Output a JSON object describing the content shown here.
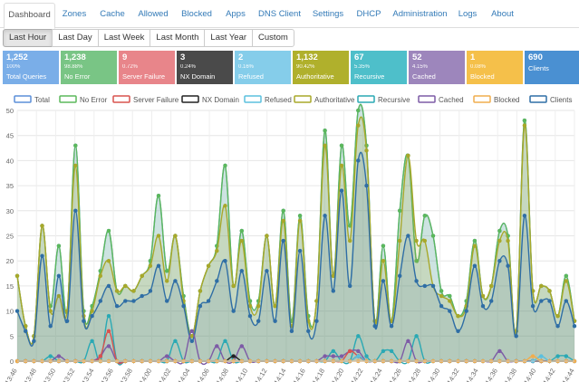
{
  "nav": {
    "tabs": [
      "Dashboard",
      "Zones",
      "Cache",
      "Allowed",
      "Blocked",
      "Apps",
      "DNS Client",
      "Settings",
      "DHCP",
      "Administration",
      "Logs",
      "About"
    ],
    "active": "Dashboard"
  },
  "range": {
    "buttons": [
      "Last Hour",
      "Last Day",
      "Last Week",
      "Last Month",
      "Last Year",
      "Custom"
    ],
    "active": "Last Hour"
  },
  "cards": [
    {
      "value": "1,252",
      "pct": "100%",
      "label": "Total Queries",
      "color": "#7aaee8"
    },
    {
      "value": "1,238",
      "pct": "98.88%",
      "label": "No Error",
      "color": "#79c585"
    },
    {
      "value": "9",
      "pct": "0.72%",
      "label": "Server Failure",
      "color": "#e8858a"
    },
    {
      "value": "3",
      "pct": "0.24%",
      "label": "NX Domain",
      "color": "#4a4a4a"
    },
    {
      "value": "2",
      "pct": "0.16%",
      "label": "Refused",
      "color": "#85cdea"
    },
    {
      "value": "1,132",
      "pct": "90.42%",
      "label": "Authoritative",
      "color": "#b0b02c"
    },
    {
      "value": "67",
      "pct": "5.35%",
      "label": "Recursive",
      "color": "#4ebfca"
    },
    {
      "value": "52",
      "pct": "4.15%",
      "label": "Cached",
      "color": "#9d86bc"
    },
    {
      "value": "1",
      "pct": "0.08%",
      "label": "Blocked",
      "color": "#f5c04a"
    },
    {
      "value": "690",
      "pct": "",
      "label": "Clients",
      "color": "#4a90d2"
    }
  ],
  "chart_data": {
    "type": "area",
    "legend": [
      "Total",
      "No Error",
      "Server Failure",
      "NX Domain",
      "Refused",
      "Authoritative",
      "Recursive",
      "Cached",
      "Blocked",
      "Clients"
    ],
    "colors": [
      "#5b8fd9",
      "#5cb85c",
      "#d9534f",
      "#222222",
      "#5bc0de",
      "#a8a82a",
      "#2aa9b4",
      "#7d5ba6",
      "#f0ad4e",
      "#2f6ea5"
    ],
    "xticks": [
      "13:46",
      "13:48",
      "13:50",
      "13:52",
      "13:54",
      "13:56",
      "13:58",
      "14:00",
      "14:02",
      "14:04",
      "14:06",
      "14:08",
      "14:10",
      "14:12",
      "14:14",
      "14:16",
      "14:18",
      "14:20",
      "14:22",
      "14:24",
      "14:26",
      "14:28",
      "14:30",
      "14:32",
      "14:34",
      "14:36",
      "14:38",
      "14:40",
      "14:42",
      "14:44"
    ],
    "ylim": [
      0,
      50
    ],
    "yticks": [
      0,
      5,
      10,
      15,
      20,
      25,
      30,
      35,
      40,
      45,
      50
    ],
    "series": {
      "Total": [
        17,
        7,
        5,
        27,
        11,
        23,
        10,
        43,
        10,
        11,
        18,
        26,
        14,
        15,
        14,
        17,
        20,
        33,
        18,
        25,
        13,
        5,
        14,
        19,
        23,
        39,
        15,
        26,
        12,
        12,
        25,
        11,
        30,
        8,
        29,
        9,
        12,
        46,
        17,
        43,
        27,
        50,
        43,
        8,
        23,
        8,
        30,
        41,
        20,
        29,
        25,
        14,
        13,
        9,
        12,
        24,
        13,
        15,
        26,
        25,
        6,
        48,
        14,
        15,
        14,
        9,
        17,
        8
      ],
      "No Error": [
        17,
        7,
        5,
        27,
        11,
        23,
        10,
        43,
        10,
        11,
        18,
        26,
        14,
        15,
        14,
        17,
        20,
        33,
        18,
        25,
        13,
        5,
        14,
        19,
        23,
        39,
        15,
        26,
        12,
        12,
        25,
        11,
        30,
        8,
        29,
        9,
        12,
        46,
        17,
        43,
        27,
        50,
        43,
        8,
        23,
        8,
        30,
        41,
        20,
        29,
        25,
        14,
        13,
        9,
        12,
        24,
        13,
        15,
        26,
        25,
        6,
        48,
        14,
        15,
        14,
        9,
        17,
        8
      ],
      "Server Failure": [
        0,
        0,
        0,
        0,
        0,
        0,
        0,
        0,
        0,
        0,
        1,
        6,
        0,
        0,
        0,
        0,
        0,
        0,
        0,
        0,
        0,
        0,
        0,
        0,
        0,
        0,
        0,
        0,
        0,
        0,
        0,
        0,
        0,
        0,
        0,
        0,
        0,
        0,
        0,
        0,
        2,
        1,
        0,
        0,
        0,
        0,
        0,
        0,
        0,
        0,
        0,
        0,
        0,
        0,
        0,
        0,
        0,
        0,
        0,
        0,
        0,
        0,
        0,
        0,
        0,
        0,
        0,
        0
      ],
      "NX Domain": [
        0,
        0,
        0,
        0,
        0,
        0,
        0,
        0,
        0,
        0,
        0,
        0,
        0,
        0,
        0,
        0,
        0,
        0,
        0,
        0,
        0,
        0,
        0,
        0,
        0,
        0,
        1,
        0,
        0,
        0,
        0,
        0,
        0,
        0,
        0,
        0,
        0,
        0,
        0,
        0,
        0,
        1,
        0,
        0,
        0,
        0,
        0,
        0,
        0,
        0,
        0,
        0,
        0,
        0,
        0,
        0,
        0,
        0,
        0,
        0,
        0,
        0,
        0,
        0,
        0,
        0,
        0,
        0
      ],
      "Refused": [
        0,
        0,
        0,
        0,
        0,
        0,
        0,
        0,
        0,
        0,
        0,
        0,
        0,
        0,
        0,
        0,
        0,
        0,
        0,
        0,
        0,
        0,
        0,
        0,
        0,
        0,
        0,
        0,
        0,
        0,
        0,
        0,
        0,
        0,
        0,
        0,
        0,
        0,
        0,
        0,
        0,
        1,
        0,
        0,
        0,
        0,
        0,
        0,
        0,
        0,
        0,
        0,
        0,
        0,
        0,
        0,
        0,
        0,
        0,
        0,
        0,
        0,
        0,
        1,
        0,
        0,
        0,
        0
      ],
      "Authoritative": [
        17,
        7,
        5,
        27,
        10,
        13,
        10,
        39,
        9,
        10,
        17,
        20,
        14,
        15,
        14,
        17,
        19,
        25,
        16,
        25,
        12,
        5,
        14,
        19,
        22,
        31,
        15,
        24,
        11,
        11,
        25,
        11,
        28,
        7,
        28,
        8,
        12,
        43,
        17,
        39,
        24,
        47,
        42,
        8,
        20,
        8,
        24,
        41,
        24,
        24,
        15,
        13,
        12,
        9,
        11,
        23,
        13,
        15,
        24,
        24,
        6,
        47,
        14,
        15,
        14,
        9,
        16,
        8
      ],
      "Recursive": [
        0,
        0,
        0,
        0,
        1,
        0,
        0,
        0,
        0,
        4,
        0,
        9,
        0,
        0,
        0,
        0,
        0,
        0,
        0,
        4,
        0,
        0,
        0,
        0,
        0,
        4,
        0,
        0,
        0,
        0,
        0,
        0,
        0,
        0,
        0,
        0,
        0,
        0,
        2,
        0,
        0,
        5,
        1,
        0,
        2,
        2,
        0,
        0,
        5,
        0,
        0,
        0,
        0,
        0,
        0,
        0,
        0,
        0,
        0,
        0,
        0,
        0,
        0,
        0,
        0,
        1,
        1,
        0
      ],
      "Cached": [
        0,
        0,
        0,
        0,
        0,
        1,
        0,
        0,
        0,
        0,
        1,
        3,
        0,
        0,
        0,
        0,
        0,
        0,
        1,
        0,
        0,
        6,
        0,
        0,
        3,
        0,
        0,
        3,
        0,
        0,
        0,
        0,
        0,
        0,
        0,
        0,
        0,
        1,
        1,
        1,
        2,
        2,
        0,
        0,
        0,
        0,
        0,
        4,
        0,
        0,
        0,
        0,
        0,
        0,
        0,
        0,
        0,
        0,
        2,
        0,
        0,
        0,
        0,
        0,
        0,
        0,
        0,
        0
      ],
      "Blocked": [
        0,
        0,
        0,
        0,
        0,
        0,
        0,
        0,
        0,
        0,
        0,
        0,
        0,
        0,
        0,
        0,
        0,
        0,
        0,
        0,
        0,
        0,
        0,
        0,
        0,
        0,
        0,
        0,
        0,
        0,
        0,
        0,
        0,
        0,
        0,
        0,
        0,
        0,
        0,
        0,
        0,
        0,
        0,
        0,
        0,
        0,
        0,
        0,
        0,
        0,
        0,
        0,
        0,
        0,
        0,
        0,
        0,
        0,
        0,
        0,
        0,
        0,
        1,
        0,
        0,
        0,
        0,
        0
      ],
      "Clients": [
        10,
        6,
        4,
        21,
        7,
        17,
        8,
        30,
        8,
        9,
        12,
        15,
        11,
        12,
        12,
        13,
        14,
        19,
        12,
        16,
        11,
        4,
        11,
        12,
        16,
        20,
        10,
        18,
        9,
        8,
        18,
        8,
        24,
        6,
        22,
        6,
        8,
        29,
        14,
        34,
        15,
        40,
        35,
        7,
        16,
        7,
        17,
        25,
        16,
        15,
        15,
        11,
        10,
        6,
        10,
        19,
        11,
        12,
        20,
        19,
        5,
        29,
        11,
        12,
        12,
        7,
        12,
        7
      ]
    }
  }
}
